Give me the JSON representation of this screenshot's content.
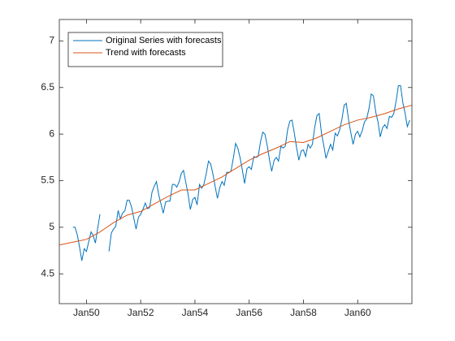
{
  "chart_data": {
    "type": "line",
    "legend": "upper left",
    "xlim": [
      1949,
      1962
    ],
    "xticks": [
      {
        "value": 1950,
        "label": "Jan50"
      },
      {
        "value": 1952,
        "label": "Jan52"
      },
      {
        "value": 1954,
        "label": "Jan54"
      },
      {
        "value": 1956,
        "label": "Jan56"
      },
      {
        "value": 1958,
        "label": "Jan58"
      },
      {
        "value": 1960,
        "label": "Jan60"
      }
    ],
    "ylim": [
      4.18,
      7.23
    ],
    "yticks": [
      4.5,
      5,
      5.5,
      6,
      6.5,
      7
    ],
    "grid": false,
    "series": [
      {
        "name": "Original Series with forecasts",
        "color": "#0072bd",
        "x": [
          1949.5,
          1949.58,
          1949.67,
          1949.75,
          1949.83,
          1949.92,
          1950,
          1950.08,
          1950.17,
          1950.25,
          1950.33,
          1950.42,
          1950.5,
          1950.58,
          1950.67,
          1950.75,
          1950.83,
          1950.92,
          1951,
          1951.08,
          1951.17,
          1951.25,
          1951.33,
          1951.42,
          1951.5,
          1951.58,
          1951.67,
          1951.75,
          1951.83,
          1951.92,
          1952,
          1952.08,
          1952.17,
          1952.25,
          1952.33,
          1952.42,
          1952.5,
          1952.58,
          1952.67,
          1952.75,
          1952.83,
          1952.92,
          1953,
          1953.08,
          1953.17,
          1953.25,
          1953.33,
          1953.42,
          1953.5,
          1953.58,
          1953.67,
          1953.75,
          1953.83,
          1953.92,
          1954,
          1954.08,
          1954.17,
          1954.25,
          1954.33,
          1954.42,
          1954.5,
          1954.58,
          1954.67,
          1954.75,
          1954.83,
          1954.92,
          1955,
          1955.08,
          1955.17,
          1955.25,
          1955.33,
          1955.42,
          1955.5,
          1955.58,
          1955.67,
          1955.75,
          1955.83,
          1955.92,
          1956,
          1956.08,
          1956.17,
          1956.25,
          1956.33,
          1956.42,
          1956.5,
          1956.58,
          1956.67,
          1956.75,
          1956.83,
          1956.92,
          1957,
          1957.08,
          1957.17,
          1957.25,
          1957.33,
          1957.42,
          1957.5,
          1957.58,
          1957.67,
          1957.75,
          1957.83,
          1957.92,
          1958,
          1958.08,
          1958.17,
          1958.25,
          1958.33,
          1958.42,
          1958.5,
          1958.58,
          1958.67,
          1958.75,
          1958.83,
          1958.92,
          1959,
          1959.08,
          1959.17,
          1959.25,
          1959.33,
          1959.42,
          1959.5,
          1959.58,
          1959.67,
          1959.75,
          1959.83,
          1959.92,
          1960,
          1960.08,
          1960.17,
          1960.25,
          1960.33,
          1960.42,
          1960.5,
          1960.58,
          1960.67,
          1960.75,
          1960.83,
          1960.92,
          1961,
          1961.08,
          1961.17,
          1961.25,
          1961.33,
          1961.42,
          1961.5,
          1961.58,
          1961.67,
          1961.75,
          1961.83,
          1961.92
        ],
        "values": [
          5.0,
          5.0,
          4.91,
          4.78,
          4.64,
          4.77,
          4.74,
          4.84,
          4.95,
          4.91,
          4.83,
          5.0,
          5.14,
          null,
          null,
          null,
          4.74,
          4.94,
          4.98,
          5.01,
          5.18,
          5.09,
          5.15,
          5.18,
          5.29,
          5.29,
          5.21,
          5.09,
          4.98,
          5.11,
          5.14,
          5.19,
          5.26,
          5.2,
          5.21,
          5.38,
          5.44,
          5.49,
          5.34,
          5.25,
          5.15,
          5.27,
          5.28,
          5.28,
          5.46,
          5.46,
          5.43,
          5.49,
          5.58,
          5.61,
          5.47,
          5.35,
          5.19,
          5.3,
          5.32,
          5.24,
          5.46,
          5.42,
          5.46,
          5.58,
          5.71,
          5.68,
          5.56,
          5.43,
          5.31,
          5.43,
          5.49,
          5.45,
          5.59,
          5.59,
          5.6,
          5.75,
          5.9,
          5.85,
          5.74,
          5.61,
          5.47,
          5.63,
          5.65,
          5.62,
          5.76,
          5.75,
          5.76,
          5.92,
          6.02,
          6.0,
          5.87,
          5.72,
          5.6,
          5.72,
          5.75,
          5.71,
          5.87,
          5.85,
          5.87,
          6.05,
          6.14,
          6.15,
          6.0,
          5.85,
          5.72,
          5.82,
          5.83,
          5.76,
          5.89,
          5.85,
          5.89,
          6.08,
          6.2,
          6.22,
          6.0,
          5.88,
          5.74,
          5.82,
          5.89,
          5.83,
          6.01,
          5.98,
          6.04,
          6.16,
          6.31,
          6.33,
          6.14,
          6.01,
          5.89,
          6.0,
          6.03,
          5.97,
          6.04,
          6.13,
          6.16,
          6.28,
          6.43,
          6.41,
          6.23,
          6.13,
          5.97,
          6.07,
          6.1,
          6.06,
          6.19,
          6.18,
          6.22,
          6.36,
          6.52,
          6.52,
          6.33,
          6.22,
          6.08,
          6.15
        ]
      },
      {
        "name": "Trend with forecasts",
        "color": "#d95319",
        "x": [
          1949,
          1949.5,
          1950,
          1950.5,
          1951,
          1951.5,
          1952,
          1952.5,
          1953,
          1953.5,
          1954,
          1954.5,
          1955,
          1955.5,
          1956,
          1956.5,
          1957,
          1957.5,
          1958,
          1958.5,
          1959,
          1959.5,
          1960,
          1960.5,
          1961,
          1961.5,
          1962
        ],
        "values": [
          4.81,
          4.84,
          4.87,
          4.95,
          5.05,
          5.13,
          5.17,
          5.25,
          5.33,
          5.4,
          5.4,
          5.47,
          5.54,
          5.63,
          5.72,
          5.79,
          5.85,
          5.92,
          5.91,
          5.96,
          6.03,
          6.1,
          6.15,
          6.18,
          6.22,
          6.27,
          6.31
        ]
      }
    ]
  }
}
